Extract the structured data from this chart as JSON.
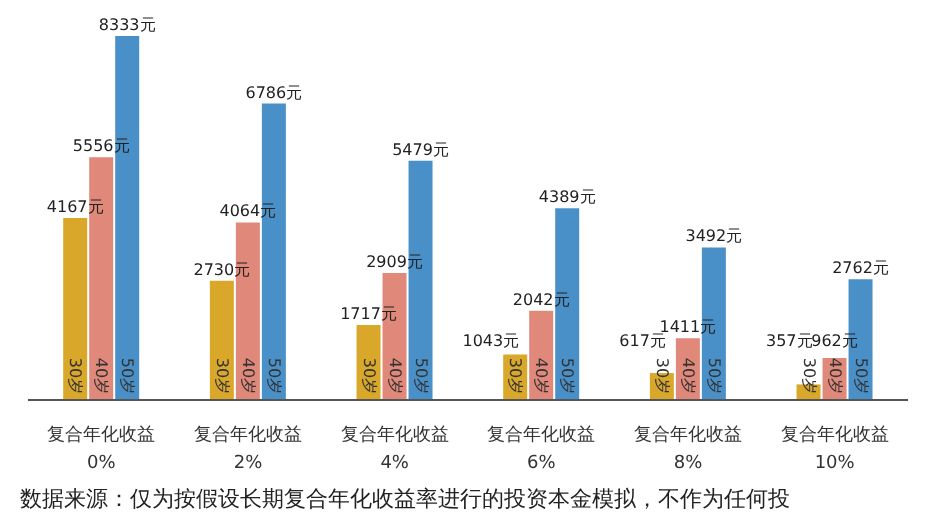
{
  "chart_data": {
    "type": "bar",
    "categories": [
      "复合年化收益 0%",
      "复合年化收益 2%",
      "复合年化收益 4%",
      "复合年化收益 6%",
      "复合年化收益 8%",
      "复合年化收益 10%"
    ],
    "series": [
      {
        "name": "30岁",
        "color": "#d9a82b",
        "values": [
          4167,
          2730,
          1717,
          1043,
          617,
          357
        ],
        "value_labels": [
          "4167元",
          "2730元",
          "1717元",
          "1043元",
          "617元",
          "357元"
        ]
      },
      {
        "name": "40岁",
        "color": "#e0887a",
        "values": [
          5556,
          4064,
          2909,
          2042,
          1411,
          962
        ],
        "value_labels": [
          "5556元",
          "4064元",
          "2909元",
          "2042元",
          "1411元",
          "962元"
        ]
      },
      {
        "name": "50岁",
        "color": "#4a90c8",
        "values": [
          8333,
          6786,
          5479,
          4389,
          3492,
          2762
        ],
        "value_labels": [
          "8333元",
          "6786元",
          "5479元",
          "4389元",
          "3492元",
          "2762元"
        ]
      }
    ],
    "annotations": [
      "数据来源：仅为按假设长期复合年化收益率进行的投资本金模拟，不作为任何投"
    ],
    "grid": false,
    "legend": false
  }
}
